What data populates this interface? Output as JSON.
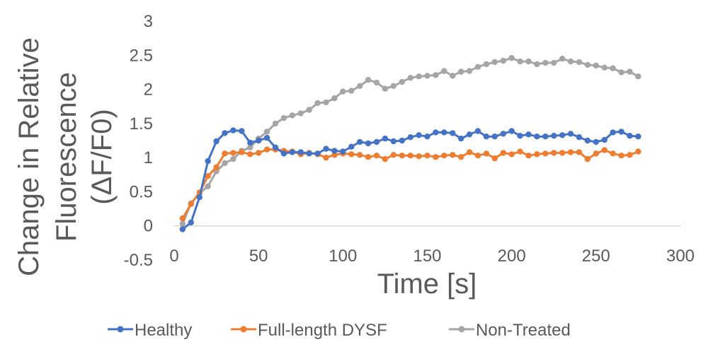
{
  "chart_data": {
    "type": "line",
    "title": "",
    "xlabel": "Time [s]",
    "ylabel_lines": [
      "Change in Relative",
      "Fluorescence",
      "(ΔF/F0)"
    ],
    "xlim": [
      0,
      300
    ],
    "ylim": [
      -0.5,
      3
    ],
    "x_ticks": [
      0,
      50,
      100,
      150,
      200,
      250,
      300
    ],
    "x_tick_labels": [
      "0",
      "50",
      "100",
      "150",
      "200",
      "250",
      "300"
    ],
    "y_ticks": [
      -0.5,
      0,
      0.5,
      1,
      1.5,
      2,
      2.5,
      3
    ],
    "y_tick_labels": [
      "-0.5",
      "0",
      "0.5",
      "1",
      "1.5",
      "2",
      "2.5",
      "3"
    ],
    "grid": false,
    "legend_position": "bottom",
    "x": [
      5,
      10,
      15,
      20,
      25,
      30,
      35,
      40,
      45,
      50,
      55,
      60,
      65,
      70,
      75,
      80,
      85,
      90,
      95,
      100,
      105,
      110,
      115,
      120,
      125,
      130,
      135,
      140,
      145,
      150,
      155,
      160,
      165,
      170,
      175,
      180,
      185,
      190,
      195,
      200,
      205,
      210,
      215,
      220,
      225,
      230,
      235,
      240,
      245,
      250,
      255,
      260,
      265,
      270,
      275
    ],
    "series": [
      {
        "name": "Healthy",
        "color": "#4472C4",
        "values": [
          -0.05,
          0.05,
          0.42,
          0.95,
          1.24,
          1.36,
          1.4,
          1.39,
          1.22,
          1.25,
          1.29,
          1.15,
          1.06,
          1.08,
          1.08,
          1.06,
          1.06,
          1.13,
          1.1,
          1.09,
          1.16,
          1.23,
          1.21,
          1.23,
          1.28,
          1.24,
          1.25,
          1.3,
          1.33,
          1.31,
          1.37,
          1.37,
          1.36,
          1.28,
          1.34,
          1.39,
          1.31,
          1.31,
          1.35,
          1.39,
          1.32,
          1.34,
          1.31,
          1.31,
          1.32,
          1.33,
          1.35,
          1.3,
          1.25,
          1.23,
          1.26,
          1.37,
          1.38,
          1.32,
          1.31
        ]
      },
      {
        "name": "Full-length DYSF",
        "color": "#ED7D31",
        "values": [
          0.11,
          0.32,
          0.49,
          0.73,
          0.86,
          1.06,
          1.07,
          1.08,
          1.05,
          1.07,
          1.12,
          1.12,
          1.1,
          1.09,
          1.05,
          1.07,
          1.05,
          1.0,
          1.04,
          1.06,
          1.05,
          1.04,
          1.01,
          1.03,
          0.98,
          1.04,
          1.03,
          1.03,
          1.02,
          1.03,
          1.01,
          1.03,
          1.04,
          1.01,
          1.08,
          1.03,
          1.06,
          0.99,
          1.07,
          1.05,
          1.09,
          1.03,
          1.05,
          1.06,
          1.07,
          1.07,
          1.08,
          1.08,
          0.98,
          1.06,
          1.11,
          1.06,
          1.03,
          1.04,
          1.09
        ]
      },
      {
        "name": "Non-Treated",
        "color": "#A5A5A5",
        "values": [
          0.03,
          0.33,
          0.48,
          0.58,
          0.8,
          0.92,
          0.98,
          1.1,
          1.15,
          1.28,
          1.38,
          1.5,
          1.58,
          1.62,
          1.65,
          1.7,
          1.8,
          1.81,
          1.87,
          1.97,
          1.98,
          2.05,
          2.14,
          2.1,
          2.01,
          2.05,
          2.11,
          2.17,
          2.19,
          2.2,
          2.21,
          2.27,
          2.2,
          2.26,
          2.27,
          2.33,
          2.37,
          2.4,
          2.42,
          2.46,
          2.41,
          2.41,
          2.37,
          2.39,
          2.39,
          2.45,
          2.41,
          2.4,
          2.36,
          2.35,
          2.32,
          2.31,
          2.25,
          2.26,
          2.19
        ]
      }
    ]
  }
}
